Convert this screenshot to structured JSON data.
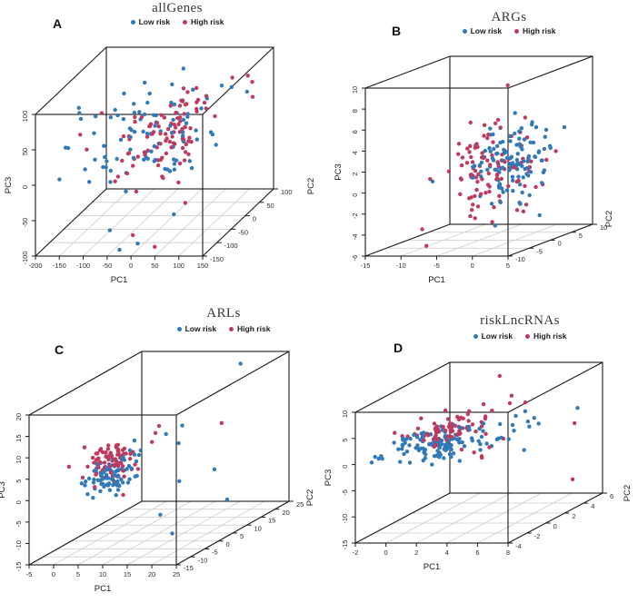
{
  "figure": {
    "background": "#ffffff",
    "rows": 2,
    "cols": 2
  },
  "colors": {
    "low_risk": "#3179b8",
    "high_risk": "#c03a5f",
    "box_line": "#1a1a1a",
    "grid_line": "#cccccc",
    "tick_text": "#2b2b2b",
    "title_text": "#3a3a3a"
  },
  "chart_data": [
    {
      "type": "scatter3d",
      "letter": "A",
      "title": "allGenes",
      "legend": [
        {
          "name": "Low risk",
          "colorKey": "low_risk"
        },
        {
          "name": "High risk",
          "colorKey": "high_risk"
        }
      ],
      "axes": {
        "x": {
          "label": "PC1",
          "range": [
            -200,
            150
          ],
          "ticks": [
            -200,
            -150,
            -100,
            -50,
            0,
            50,
            100,
            150
          ]
        },
        "depth": {
          "label": "PC2",
          "range": [
            -150,
            100
          ],
          "ticks": [
            -150,
            -100,
            -50,
            0,
            50,
            100
          ]
        },
        "z": {
          "label": "PC3",
          "range": [
            -100,
            100
          ],
          "ticks": [
            -100,
            -50,
            0,
            50,
            100
          ]
        }
      },
      "grid": true,
      "series": [
        {
          "name": "Low risk",
          "colorKey": "low_risk",
          "seed": 101,
          "clusters": [
            {
              "n": 92,
              "center": [
                -35,
                -20,
                18
              ],
              "sd": [
                58,
                52,
                30
              ]
            }
          ],
          "points": [
            [
              -176,
              -75,
              24
            ],
            [
              -30,
              -140,
              -95
            ],
            [
              5,
              -135,
              -88
            ],
            [
              -62,
              -120,
              -75
            ],
            [
              95,
              10,
              80
            ],
            [
              -15,
              60,
              85
            ],
            [
              130,
              40,
              60
            ],
            [
              60,
              -100,
              -60
            ],
            [
              80,
              70,
              55
            ]
          ]
        },
        {
          "name": "High risk",
          "colorKey": "high_risk",
          "seed": 202,
          "clusters": [
            {
              "n": 92,
              "center": [
                -5,
                -25,
                26
              ],
              "sd": [
                42,
                48,
                27
              ]
            }
          ],
          "points": [
            [
              -151,
              -75,
              43
            ],
            [
              -140,
              -70,
              20
            ],
            [
              -97,
              -90,
              79
            ],
            [
              60,
              -20,
              88
            ],
            [
              135,
              50,
              70
            ],
            [
              45,
              -142,
              -90
            ],
            [
              -8,
              -130,
              -78
            ],
            [
              90,
              -110,
              -40
            ],
            [
              120,
              60,
              75
            ],
            [
              -60,
              -35,
              46
            ],
            [
              130,
              60,
              45
            ]
          ]
        }
      ]
    },
    {
      "type": "scatter3d",
      "letter": "B",
      "title": "ARGs",
      "legend": [
        {
          "name": "Low risk",
          "colorKey": "low_risk"
        },
        {
          "name": "High risk",
          "colorKey": "high_risk"
        }
      ],
      "axes": {
        "x": {
          "label": "PC1",
          "range": [
            -15,
            5
          ],
          "ticks": [
            -15,
            -10,
            -5,
            0,
            5
          ]
        },
        "depth": {
          "label": "PC2",
          "range": [
            -10,
            10
          ],
          "ticks": [
            -10,
            -5,
            0,
            5,
            10
          ]
        },
        "z": {
          "label": "PC3",
          "range": [
            -6,
            10
          ],
          "ticks": [
            -6,
            -4,
            -2,
            0,
            2,
            4,
            6,
            8,
            10
          ]
        }
      },
      "grid": true,
      "series": [
        {
          "name": "Low risk",
          "colorKey": "low_risk",
          "seed": 103,
          "clusters": [
            {
              "n": 118,
              "center": [
                -0.8,
                0.5,
                1.3
              ],
              "sd": [
                1.7,
                3.4,
                1.7
              ]
            }
          ],
          "points": [
            [
              -11.5,
              0,
              -0.4
            ],
            [
              2,
              -8,
              -3.4
            ],
            [
              -3.5,
              6,
              5.2
            ],
            [
              4,
              5,
              4
            ]
          ]
        },
        {
          "name": "High risk",
          "colorKey": "high_risk",
          "seed": 204,
          "clusters": [
            {
              "n": 95,
              "center": [
                -3,
                -0.5,
                0.9
              ],
              "sd": [
                2.9,
                3.9,
                2.2
              ]
            }
          ],
          "points": [
            [
              2,
              -5,
              9.5
            ],
            [
              -10,
              -5,
              -4.2
            ],
            [
              -2,
              -6,
              -3
            ],
            [
              1,
              -7,
              -3.2
            ],
            [
              3,
              -3,
              -2.8
            ],
            [
              -6,
              3,
              4.5
            ],
            [
              -5,
              -2,
              5.5
            ],
            [
              -4,
              6,
              3
            ],
            [
              4,
              -4,
              -2
            ],
            [
              -6.5,
              2,
              -1.5
            ]
          ]
        }
      ]
    },
    {
      "type": "scatter3d",
      "letter": "C",
      "title": "ARLs",
      "legend": [
        {
          "name": "Low risk",
          "colorKey": "low_risk"
        },
        {
          "name": "High risk",
          "colorKey": "high_risk"
        }
      ],
      "axes": {
        "x": {
          "label": "PC1",
          "range": [
            -5,
            25
          ],
          "ticks": [
            -5,
            0,
            5,
            10,
            15,
            20,
            25
          ]
        },
        "depth": {
          "label": "PC2",
          "range": [
            -15,
            25
          ],
          "ticks": [
            -15,
            -10,
            -5,
            0,
            5,
            10,
            15,
            20,
            25
          ]
        },
        "z": {
          "label": "PC3",
          "range": [
            -15,
            20
          ],
          "ticks": [
            -15,
            -10,
            -5,
            0,
            5,
            10,
            15,
            20
          ]
        }
      },
      "grid": true,
      "series": [
        {
          "name": "Low risk",
          "colorKey": "low_risk",
          "seed": 105,
          "clusters": [
            {
              "n": 92,
              "center": [
                5.5,
                -3,
                2.3
              ],
              "sd": [
                2.2,
                3.4,
                2.0
              ]
            }
          ],
          "points": [
            [
              18,
              20,
              19
            ],
            [
              14,
              5,
              6
            ],
            [
              17,
              0,
              -1
            ],
            [
              21,
              10,
              -9
            ],
            [
              16,
              -5,
              -7
            ],
            [
              19,
              -6,
              -11
            ],
            [
              23,
              2,
              1
            ],
            [
              12,
              4,
              8.5
            ],
            [
              13,
              8,
              9
            ]
          ]
        },
        {
          "name": "High risk",
          "colorKey": "high_risk",
          "seed": 206,
          "clusters": [
            {
              "n": 80,
              "center": [
                4.2,
                -2,
                4.2
              ],
              "sd": [
                1.9,
                3.0,
                1.8
              ]
            }
          ],
          "points": [
            [
              17,
              15,
              7
            ],
            [
              11,
              2,
              9.5
            ],
            [
              12,
              -1,
              8.5
            ],
            [
              10,
              5,
              10
            ],
            [
              9,
              -6,
              -2
            ]
          ]
        }
      ]
    },
    {
      "type": "scatter3d",
      "letter": "D",
      "title": "riskLncRNAs",
      "legend": [
        {
          "name": "Low risk",
          "colorKey": "low_risk"
        },
        {
          "name": "High risk",
          "colorKey": "high_risk"
        }
      ],
      "axes": {
        "x": {
          "label": "PC1",
          "range": [
            -2,
            8
          ],
          "ticks": [
            -2,
            0,
            2,
            4,
            6,
            8
          ]
        },
        "depth": {
          "label": "PC2",
          "range": [
            -4,
            6
          ],
          "ticks": [
            -4,
            -2,
            0,
            2,
            4,
            6
          ]
        },
        "z": {
          "label": "PC3",
          "range": [
            -15,
            10
          ],
          "ticks": [
            -15,
            -10,
            -5,
            0,
            5,
            10
          ]
        }
      },
      "grid": true,
      "series": [
        {
          "name": "Low risk",
          "colorKey": "low_risk",
          "seed": 107,
          "clusters": [
            {
              "n": 128,
              "center": [
                0.8,
                0.5,
                0.2
              ],
              "sd": [
                1.5,
                1.6,
                1.0
              ]
            }
          ],
          "points": [
            [
              5.2,
              1,
              2.8
            ],
            [
              5.6,
              0.5,
              2.2
            ],
            [
              5.9,
              1.5,
              3
            ],
            [
              6.3,
              1,
              2.5
            ],
            [
              5.4,
              -0.5,
              1.8
            ],
            [
              6.0,
              2,
              3.2
            ],
            [
              6.6,
              1.5,
              2.6
            ],
            [
              7.6,
              4,
              3.2
            ],
            [
              4.8,
              2,
              3.6
            ],
            [
              5.1,
              2.5,
              4
            ],
            [
              4.9,
              0,
              1.2
            ]
          ]
        },
        {
          "name": "High risk",
          "colorKey": "high_risk",
          "seed": 208,
          "clusters": [
            {
              "n": 72,
              "center": [
                0.6,
                1.5,
                1.8
              ],
              "sd": [
                1.1,
                1.4,
                0.9
              ]
            }
          ],
          "points": [
            [
              2.5,
              4,
              9.3
            ],
            [
              7.4,
              4,
              0.3
            ],
            [
              7.9,
              3,
              -9.5
            ],
            [
              3.3,
              0,
              -1.5
            ],
            [
              3.5,
              0.5,
              -3
            ],
            [
              4.3,
              0,
              -0.5
            ],
            [
              3.1,
              -1,
              0
            ],
            [
              4.6,
              1,
              0.2
            ],
            [
              3.8,
              0,
              -2.2
            ],
            [
              4.4,
              2,
              6
            ],
            [
              3.9,
              3,
              6.5
            ],
            [
              4.8,
              3,
              5.2
            ]
          ]
        }
      ]
    }
  ]
}
